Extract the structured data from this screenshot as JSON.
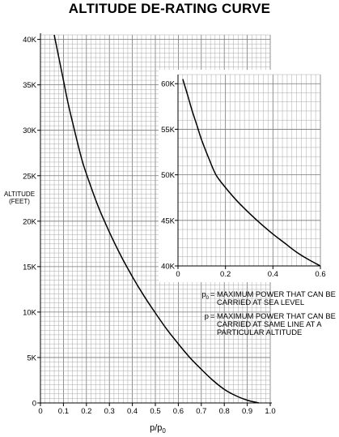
{
  "title": "ALTITUDE DE-RATING CURVE",
  "chart_data": [
    {
      "type": "line",
      "title": "ALTITUDE DE-RATING CURVE",
      "xlabel": "p/p",
      "xlabel_subscript": "0",
      "ylabel": [
        "ALTITUDE",
        "(FEET)"
      ],
      "xlim": [
        0,
        1.0
      ],
      "ylim": [
        0,
        40500
      ],
      "x_ticks": [
        "0",
        "0.1",
        "0.2",
        "0.3",
        "0.4",
        "0.5",
        "0.6",
        "0.7",
        "0.8",
        "0.9",
        "1.0"
      ],
      "y_ticks": [
        "0",
        "5K",
        "10K",
        "15K",
        "20K",
        "25K",
        "30K",
        "35K",
        "40K"
      ],
      "grid": true,
      "series": [
        {
          "x": [
            0.06,
            0.08,
            0.1,
            0.12,
            0.15,
            0.18,
            0.2,
            0.25,
            0.3,
            0.35,
            0.4,
            0.45,
            0.5,
            0.55,
            0.6,
            0.65,
            0.7,
            0.75,
            0.8,
            0.85,
            0.9,
            0.95
          ],
          "y": [
            40500,
            38000,
            35500,
            33000,
            29800,
            26800,
            25200,
            21700,
            18800,
            16200,
            13900,
            11800,
            9900,
            8100,
            6500,
            5000,
            3700,
            2500,
            1500,
            800,
            300,
            0
          ]
        }
      ]
    },
    {
      "type": "line",
      "xlim": [
        0,
        0.6
      ],
      "ylim": [
        40000,
        61000
      ],
      "x_ticks": [
        "0",
        "0.2",
        "0.4",
        "0.6"
      ],
      "y_ticks": [
        "40K",
        "45K",
        "50K",
        "55K",
        "60K"
      ],
      "grid": true,
      "series": [
        {
          "x": [
            0.02,
            0.04,
            0.06,
            0.08,
            0.1,
            0.13,
            0.16,
            0.2,
            0.25,
            0.3,
            0.35,
            0.4,
            0.45,
            0.5,
            0.55,
            0.6
          ],
          "y": [
            60500,
            58800,
            57000,
            55400,
            53800,
            51800,
            50000,
            48600,
            47100,
            45800,
            44600,
            43500,
            42500,
            41500,
            40700,
            40000
          ]
        }
      ]
    }
  ],
  "legend": {
    "items": [
      {
        "symbol": "p",
        "subscript": "0",
        "equals": "=",
        "text": "MAXIMUM POWER THAT CAN BE CARRIED AT SEA LEVEL"
      },
      {
        "symbol": "p",
        "subscript": "",
        "equals": "=",
        "text": "MAXIMUM POWER THAT CAN BE CARRIED AT SAME LINE AT A PARTICULAR ALTITUDE"
      }
    ]
  }
}
